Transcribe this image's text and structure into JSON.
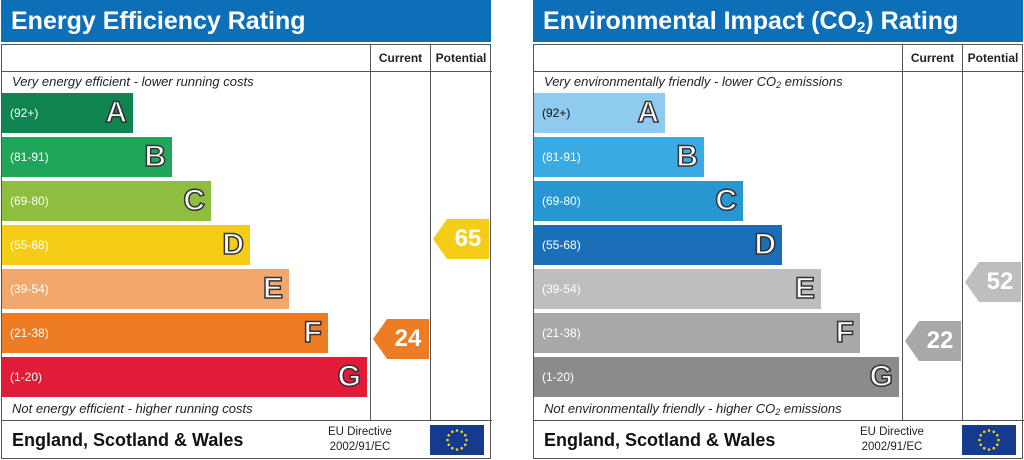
{
  "chart_data": [
    {
      "type": "bar",
      "title": "Energy Efficiency Rating",
      "columns": [
        "Current",
        "Potential"
      ],
      "top_caption": "Very energy efficient - lower running costs",
      "bottom_caption": "Not energy efficient - higher running costs",
      "bands": [
        {
          "letter": "A",
          "range": "(92+)",
          "color": "#0f8350"
        },
        {
          "letter": "B",
          "range": "(81-91)",
          "color": "#20a65a"
        },
        {
          "letter": "C",
          "range": "(69-80)",
          "color": "#8dbe3f"
        },
        {
          "letter": "D",
          "range": "(55-68)",
          "color": "#f5cd17"
        },
        {
          "letter": "E",
          "range": "(39-54)",
          "color": "#f2a86d"
        },
        {
          "letter": "F",
          "range": "(21-38)",
          "color": "#ee7c24"
        },
        {
          "letter": "G",
          "range": "(1-20)",
          "color": "#e11b38"
        }
      ],
      "current": {
        "value": 24,
        "band": "F",
        "color": "#ee7c24"
      },
      "potential": {
        "value": 65,
        "band": "D",
        "color": "#f5cd17"
      },
      "region": "England, Scotland & Wales",
      "directive_line1": "EU Directive",
      "directive_line2": "2002/91/EC"
    },
    {
      "type": "bar",
      "title": "Environmental Impact (CO",
      "title_subscript": "2",
      "title_suffix": ") Rating",
      "columns": [
        "Current",
        "Potential"
      ],
      "top_caption": "Very environmentally friendly - lower CO",
      "top_caption_subscript": "2",
      "top_caption_suffix": " emissions",
      "bottom_caption": "Not environmentally friendly - higher CO",
      "bottom_caption_subscript": "2",
      "bottom_caption_suffix": " emissions",
      "bands": [
        {
          "letter": "A",
          "range": "(92+)",
          "color": "#8fcbee"
        },
        {
          "letter": "B",
          "range": "(81-91)",
          "color": "#3ba9e2"
        },
        {
          "letter": "C",
          "range": "(69-80)",
          "color": "#2796d1"
        },
        {
          "letter": "D",
          "range": "(55-68)",
          "color": "#1a6fb8"
        },
        {
          "letter": "E",
          "range": "(39-54)",
          "color": "#bebebe"
        },
        {
          "letter": "F",
          "range": "(21-38)",
          "color": "#a8a8a8"
        },
        {
          "letter": "G",
          "range": "(1-20)",
          "color": "#8b8b8b"
        }
      ],
      "current": {
        "value": 22,
        "band": "F",
        "color": "#a8a8a8"
      },
      "potential": {
        "value": 52,
        "band": "E",
        "color": "#bebebe"
      },
      "region": "England, Scotland & Wales",
      "directive_line1": "EU Directive",
      "directive_line2": "2002/91/EC"
    }
  ]
}
